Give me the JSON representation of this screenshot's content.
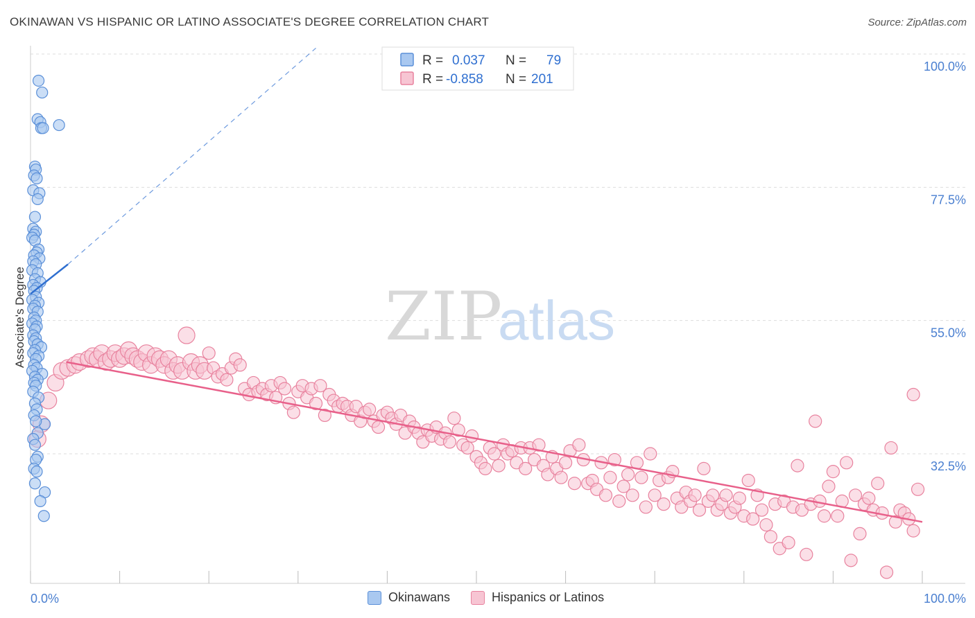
{
  "header": {
    "title": "OKINAWAN VS HISPANIC OR LATINO ASSOCIATE'S DEGREE CORRELATION CHART",
    "source": "Source: ZipAtlas.com"
  },
  "watermark": {
    "zip": "ZIP",
    "atlas": "atlas"
  },
  "legend_top": {
    "rows": [
      {
        "r_label": "R =",
        "r_value": "0.037",
        "n_label": "N =",
        "n_value": "79"
      },
      {
        "r_label": "R =",
        "r_value": "-0.858",
        "n_label": "N =",
        "n_value": "201"
      }
    ]
  },
  "legend_bottom": {
    "items": [
      {
        "label": "Okinawans"
      },
      {
        "label": "Hispanics or Latinos"
      }
    ]
  },
  "colors": {
    "blue_fill": "#a9c8f0",
    "blue_stroke": "#5a8fd8",
    "blue_line": "#2f6fd0",
    "pink_fill": "#f7c5d3",
    "pink_stroke": "#e8829e",
    "pink_line": "#e8608a",
    "tick_label": "#4a7fd0",
    "grid": "#dddddd"
  },
  "chart_data": {
    "type": "scatter",
    "title": "OKINAWAN VS HISPANIC OR LATINO ASSOCIATE'S DEGREE CORRELATION CHART",
    "xlabel": "",
    "ylabel": "Associate's Degree",
    "xlim": [
      0,
      100
    ],
    "ylim": [
      10,
      102
    ],
    "x_tick_labels": [
      "0.0%",
      "100.0%"
    ],
    "y_ticks": [
      100.0,
      77.5,
      55.0,
      32.5
    ],
    "y_tick_labels": [
      "100.0%",
      "77.5%",
      "55.0%",
      "32.5%"
    ],
    "grid": true,
    "legend_position": "top-center",
    "series": [
      {
        "name": "Okinawans",
        "R": 0.037,
        "N": 79,
        "trend": {
          "x": [
            0.0,
            4.2
          ],
          "y": [
            59.5,
            64.5
          ],
          "dashed_extension": {
            "x": [
              4.2,
              32.0
            ],
            "y": [
              64.5,
              101.0
            ]
          }
        },
        "points": [
          [
            0.9,
            95.5
          ],
          [
            1.3,
            93.5
          ],
          [
            0.8,
            89.0
          ],
          [
            1.1,
            88.5
          ],
          [
            3.2,
            88.0
          ],
          [
            1.2,
            87.5
          ],
          [
            1.4,
            87.5
          ],
          [
            0.5,
            81.0
          ],
          [
            0.6,
            80.5
          ],
          [
            0.4,
            79.5
          ],
          [
            0.7,
            79.0
          ],
          [
            0.3,
            77.0
          ],
          [
            1.0,
            76.5
          ],
          [
            0.8,
            75.5
          ],
          [
            0.5,
            72.5
          ],
          [
            0.3,
            70.5
          ],
          [
            0.6,
            70.0
          ],
          [
            0.4,
            69.5
          ],
          [
            0.2,
            69.0
          ],
          [
            0.5,
            68.5
          ],
          [
            0.9,
            67.0
          ],
          [
            0.7,
            66.5
          ],
          [
            0.4,
            66.0
          ],
          [
            1.0,
            65.5
          ],
          [
            0.3,
            65.0
          ],
          [
            0.6,
            64.5
          ],
          [
            0.2,
            63.5
          ],
          [
            0.8,
            63.0
          ],
          [
            0.5,
            62.0
          ],
          [
            1.1,
            61.5
          ],
          [
            0.3,
            61.0
          ],
          [
            0.7,
            60.5
          ],
          [
            0.4,
            60.0
          ],
          [
            0.6,
            59.0
          ],
          [
            0.2,
            58.5
          ],
          [
            0.9,
            58.0
          ],
          [
            0.5,
            57.5
          ],
          [
            0.3,
            57.0
          ],
          [
            0.8,
            56.5
          ],
          [
            0.4,
            55.5
          ],
          [
            0.6,
            55.0
          ],
          [
            0.2,
            54.5
          ],
          [
            0.7,
            54.0
          ],
          [
            0.5,
            53.5
          ],
          [
            0.3,
            52.5
          ],
          [
            0.6,
            52.0
          ],
          [
            0.4,
            51.5
          ],
          [
            0.8,
            51.0
          ],
          [
            1.2,
            50.5
          ],
          [
            0.5,
            50.0
          ],
          [
            0.3,
            49.5
          ],
          [
            0.9,
            49.0
          ],
          [
            0.6,
            48.5
          ],
          [
            0.4,
            47.5
          ],
          [
            0.7,
            47.0
          ],
          [
            0.2,
            46.5
          ],
          [
            1.3,
            46.0
          ],
          [
            0.5,
            45.5
          ],
          [
            0.8,
            45.0
          ],
          [
            0.4,
            44.5
          ],
          [
            0.6,
            44.0
          ],
          [
            1.6,
            37.5
          ],
          [
            0.8,
            32.0
          ],
          [
            0.6,
            31.5
          ],
          [
            0.4,
            30.0
          ],
          [
            0.7,
            29.5
          ],
          [
            0.5,
            27.5
          ],
          [
            1.6,
            26.0
          ],
          [
            1.1,
            24.5
          ],
          [
            1.5,
            22.0
          ],
          [
            0.3,
            43.0
          ],
          [
            0.9,
            42.0
          ],
          [
            0.5,
            41.0
          ],
          [
            0.7,
            40.0
          ],
          [
            0.4,
            39.0
          ],
          [
            0.6,
            38.0
          ],
          [
            0.8,
            36.0
          ],
          [
            0.3,
            35.0
          ],
          [
            0.5,
            34.0
          ]
        ]
      },
      {
        "name": "Hispanics or Latinos",
        "R": -0.858,
        "N": 201,
        "trend": {
          "x": [
            4.0,
            100.0
          ],
          "y": [
            48.0,
            21.0
          ]
        },
        "points": [
          [
            0.8,
            35.0
          ],
          [
            1.2,
            37.5
          ],
          [
            2.0,
            41.5
          ],
          [
            2.8,
            44.5
          ],
          [
            3.5,
            46.5
          ],
          [
            4.2,
            47.0
          ],
          [
            5.0,
            47.5
          ],
          [
            5.5,
            48.0
          ],
          [
            6.5,
            48.5
          ],
          [
            7.0,
            49.0
          ],
          [
            7.5,
            48.5
          ],
          [
            8.0,
            49.5
          ],
          [
            8.5,
            48.0
          ],
          [
            9.0,
            48.5
          ],
          [
            9.5,
            49.5
          ],
          [
            10.0,
            48.5
          ],
          [
            10.5,
            49.0
          ],
          [
            11.0,
            50.0
          ],
          [
            11.5,
            49.0
          ],
          [
            12.0,
            48.5
          ],
          [
            12.5,
            48.0
          ],
          [
            13.0,
            49.5
          ],
          [
            13.5,
            47.5
          ],
          [
            14.0,
            49.0
          ],
          [
            14.5,
            48.5
          ],
          [
            15.0,
            47.5
          ],
          [
            15.5,
            48.5
          ],
          [
            16.0,
            46.5
          ],
          [
            16.5,
            47.5
          ],
          [
            17.0,
            46.5
          ],
          [
            17.5,
            52.5
          ],
          [
            18.0,
            48.0
          ],
          [
            18.5,
            46.5
          ],
          [
            19.0,
            47.5
          ],
          [
            19.5,
            46.5
          ],
          [
            20.0,
            49.5
          ],
          [
            20.5,
            47.0
          ],
          [
            21.0,
            45.5
          ],
          [
            21.5,
            46.0
          ],
          [
            22.0,
            45.0
          ],
          [
            22.5,
            47.0
          ],
          [
            23.0,
            48.5
          ],
          [
            23.5,
            47.5
          ],
          [
            24.0,
            43.5
          ],
          [
            24.5,
            42.5
          ],
          [
            25.0,
            44.5
          ],
          [
            25.5,
            43.0
          ],
          [
            26.0,
            43.5
          ],
          [
            26.5,
            42.5
          ],
          [
            27.0,
            44.0
          ],
          [
            27.5,
            42.0
          ],
          [
            28.0,
            44.5
          ],
          [
            28.5,
            43.5
          ],
          [
            29.0,
            41.0
          ],
          [
            29.5,
            39.5
          ],
          [
            30.0,
            43.0
          ],
          [
            30.5,
            44.0
          ],
          [
            31.0,
            42.0
          ],
          [
            31.5,
            43.5
          ],
          [
            32.0,
            41.0
          ],
          [
            32.5,
            44.0
          ],
          [
            33.0,
            39.0
          ],
          [
            33.5,
            42.5
          ],
          [
            34.0,
            41.5
          ],
          [
            34.5,
            40.5
          ],
          [
            35.0,
            41.0
          ],
          [
            35.5,
            40.5
          ],
          [
            36.0,
            39.0
          ],
          [
            36.5,
            40.5
          ],
          [
            37.0,
            38.0
          ],
          [
            37.5,
            39.5
          ],
          [
            38.0,
            40.0
          ],
          [
            38.5,
            38.0
          ],
          [
            39.0,
            37.0
          ],
          [
            39.5,
            39.0
          ],
          [
            40.0,
            39.5
          ],
          [
            40.5,
            38.5
          ],
          [
            41.0,
            37.5
          ],
          [
            41.5,
            39.0
          ],
          [
            42.0,
            36.0
          ],
          [
            42.5,
            38.0
          ],
          [
            43.0,
            37.0
          ],
          [
            43.5,
            36.0
          ],
          [
            44.0,
            34.5
          ],
          [
            44.5,
            36.5
          ],
          [
            45.0,
            35.5
          ],
          [
            45.5,
            37.0
          ],
          [
            46.0,
            35.0
          ],
          [
            46.5,
            36.0
          ],
          [
            47.0,
            34.5
          ],
          [
            47.5,
            38.5
          ],
          [
            48.0,
            36.5
          ],
          [
            48.5,
            34.0
          ],
          [
            49.0,
            33.5
          ],
          [
            49.5,
            35.5
          ],
          [
            50.0,
            32.0
          ],
          [
            50.5,
            31.0
          ],
          [
            51.0,
            30.0
          ],
          [
            51.5,
            33.5
          ],
          [
            52.0,
            32.5
          ],
          [
            52.5,
            30.5
          ],
          [
            53.0,
            34.0
          ],
          [
            53.5,
            32.5
          ],
          [
            54.0,
            33.0
          ],
          [
            54.5,
            31.0
          ],
          [
            55.0,
            33.5
          ],
          [
            55.5,
            30.0
          ],
          [
            56.0,
            33.5
          ],
          [
            56.5,
            31.5
          ],
          [
            57.0,
            34.0
          ],
          [
            57.5,
            30.5
          ],
          [
            58.0,
            29.0
          ],
          [
            58.5,
            32.0
          ],
          [
            59.0,
            30.0
          ],
          [
            59.5,
            28.5
          ],
          [
            60.0,
            31.0
          ],
          [
            60.5,
            33.0
          ],
          [
            61.0,
            27.5
          ],
          [
            61.5,
            34.0
          ],
          [
            62.0,
            31.5
          ],
          [
            62.5,
            27.5
          ],
          [
            63.0,
            28.0
          ],
          [
            63.5,
            26.5
          ],
          [
            64.0,
            31.0
          ],
          [
            64.5,
            25.5
          ],
          [
            65.0,
            28.5
          ],
          [
            65.5,
            31.5
          ],
          [
            66.0,
            24.5
          ],
          [
            66.5,
            27.0
          ],
          [
            67.0,
            29.0
          ],
          [
            67.5,
            25.5
          ],
          [
            68.0,
            31.0
          ],
          [
            68.5,
            28.5
          ],
          [
            69.0,
            23.5
          ],
          [
            69.5,
            32.5
          ],
          [
            70.0,
            25.5
          ],
          [
            70.5,
            28.0
          ],
          [
            71.0,
            24.0
          ],
          [
            71.5,
            28.5
          ],
          [
            72.0,
            29.5
          ],
          [
            72.5,
            25.0
          ],
          [
            73.0,
            23.5
          ],
          [
            73.5,
            26.0
          ],
          [
            74.0,
            24.5
          ],
          [
            74.5,
            25.5
          ],
          [
            75.0,
            23.0
          ],
          [
            75.5,
            30.0
          ],
          [
            76.0,
            24.5
          ],
          [
            76.5,
            25.5
          ],
          [
            77.0,
            23.0
          ],
          [
            77.5,
            24.0
          ],
          [
            78.0,
            25.5
          ],
          [
            78.5,
            22.5
          ],
          [
            79.0,
            23.5
          ],
          [
            79.5,
            25.0
          ],
          [
            80.0,
            22.0
          ],
          [
            80.5,
            28.0
          ],
          [
            81.0,
            21.5
          ],
          [
            81.5,
            25.5
          ],
          [
            82.0,
            23.0
          ],
          [
            82.5,
            20.5
          ],
          [
            83.0,
            18.5
          ],
          [
            83.5,
            24.0
          ],
          [
            84.0,
            16.5
          ],
          [
            84.5,
            24.5
          ],
          [
            85.0,
            17.5
          ],
          [
            85.5,
            23.5
          ],
          [
            86.0,
            30.5
          ],
          [
            86.5,
            23.0
          ],
          [
            87.0,
            15.5
          ],
          [
            87.5,
            24.0
          ],
          [
            88.0,
            38.0
          ],
          [
            88.5,
            24.5
          ],
          [
            89.0,
            22.0
          ],
          [
            89.5,
            27.0
          ],
          [
            90.0,
            29.5
          ],
          [
            90.5,
            22.0
          ],
          [
            91.0,
            24.5
          ],
          [
            91.5,
            31.0
          ],
          [
            92.0,
            14.5
          ],
          [
            92.5,
            25.5
          ],
          [
            93.0,
            19.0
          ],
          [
            93.5,
            24.0
          ],
          [
            94.0,
            25.0
          ],
          [
            94.5,
            23.0
          ],
          [
            95.0,
            27.5
          ],
          [
            95.5,
            22.5
          ],
          [
            96.0,
            12.5
          ],
          [
            96.5,
            33.5
          ],
          [
            97.0,
            21.0
          ],
          [
            97.5,
            23.0
          ],
          [
            98.0,
            22.5
          ],
          [
            98.5,
            21.5
          ],
          [
            99.0,
            19.5
          ],
          [
            99.5,
            26.5
          ],
          [
            99.0,
            42.5
          ]
        ]
      }
    ]
  }
}
